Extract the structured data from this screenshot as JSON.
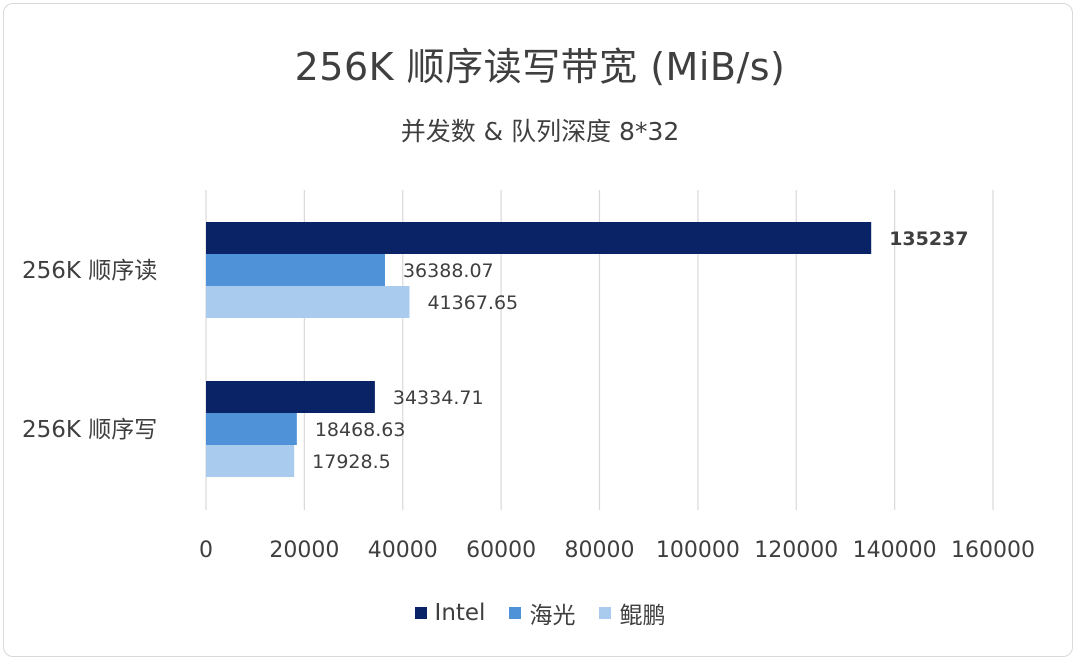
{
  "chart_data": {
    "type": "bar",
    "orientation": "horizontal",
    "title": "256K 顺序读写带宽 (MiB/s)",
    "subtitle": "并发数 & 队列深度 8*32",
    "categories": [
      "256K 顺序读",
      "256K 顺序写"
    ],
    "series": [
      {
        "name": "Intel",
        "color": "#0a2366",
        "values": [
          135237,
          34334.71
        ],
        "labels": [
          "135237",
          "34334.71"
        ]
      },
      {
        "name": "海光",
        "color": "#4f92d8",
        "values": [
          36388.07,
          18468.63
        ],
        "labels": [
          "36388.07",
          "18468.63"
        ]
      },
      {
        "name": "鲲鹏",
        "color": "#a9cbee",
        "values": [
          41367.65,
          17928.5
        ],
        "labels": [
          "41367.65",
          "17928.5"
        ]
      }
    ],
    "xlim": [
      0,
      160000
    ],
    "xticks": [
      0,
      20000,
      40000,
      60000,
      80000,
      100000,
      120000,
      140000,
      160000
    ],
    "xtick_labels": [
      "0",
      "20000",
      "40000",
      "60000",
      "80000",
      "100000",
      "120000",
      "140000",
      "160000"
    ],
    "xlabel": "",
    "ylabel": "",
    "grid": "vertical",
    "legend": "bottom"
  }
}
